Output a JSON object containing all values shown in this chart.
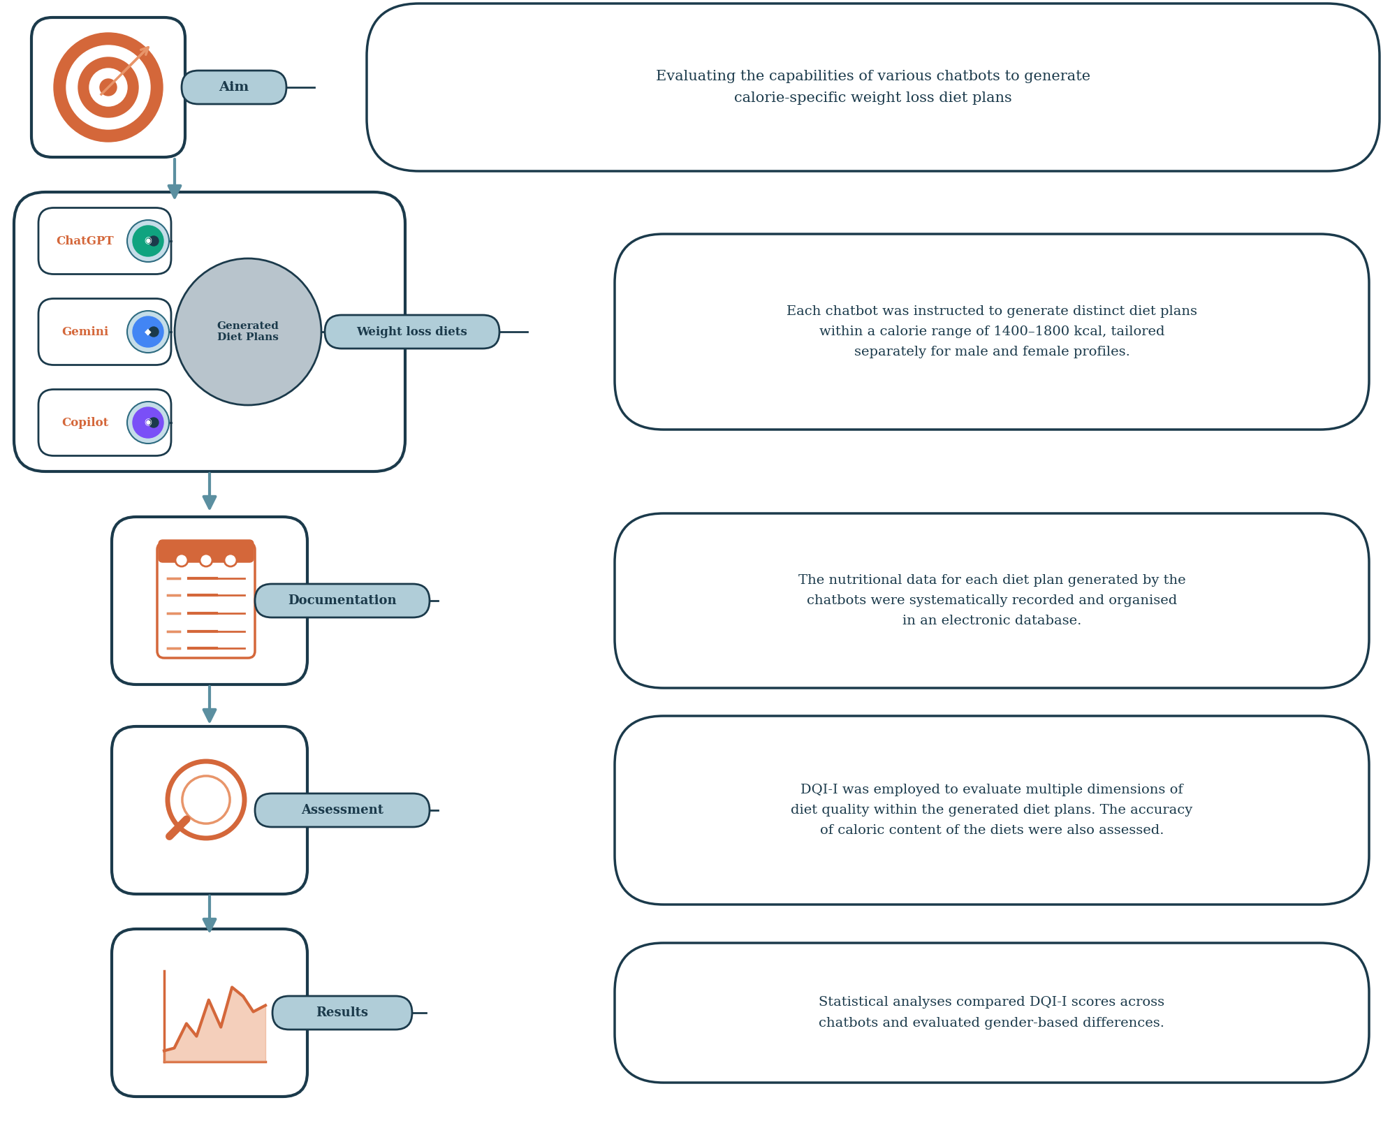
{
  "bg_color": "#ffffff",
  "dark_teal": "#1b3a4b",
  "medium_teal": "#2e6b80",
  "light_blue_fill": "#c5dde8",
  "orange": "#d4673a",
  "orange_light": "#e8956a",
  "gray_fill": "#b8c4cc",
  "white": "#ffffff",
  "label_bg": "#b0cdd8",
  "arrow_color": "#5b8fa0",
  "aim_label": "Aim",
  "aim_text": "Evaluating the capabilities of various chatbots to generate\ncalorie-specific weight loss diet plans",
  "chatbots": [
    "ChatGPT",
    "Gemini",
    "Copilot"
  ],
  "diet_label": "Generated\nDiet Plans",
  "weight_label": "Weight loss diets",
  "weight_text": "Each chatbot was instructed to generate distinct diet plans\nwithin a calorie range of 1400–1800 kcal, tailored\nseparately for male and female profiles.",
  "doc_label": "Documentation",
  "doc_text": "The nutritional data for each diet plan generated by the\nchatbots were systematically recorded and organised\nin an electronic database.",
  "assess_label": "Assessment",
  "assess_text": "DQI-I was employed to evaluate multiple dimensions of\ndiet quality within the generated diet plans. The accuracy\nof caloric content of the diets were also assessed.",
  "results_label": "Results",
  "results_text": "Statistical analyses compared DQI-I scores across\nchatbots and evaluated gender-based differences."
}
